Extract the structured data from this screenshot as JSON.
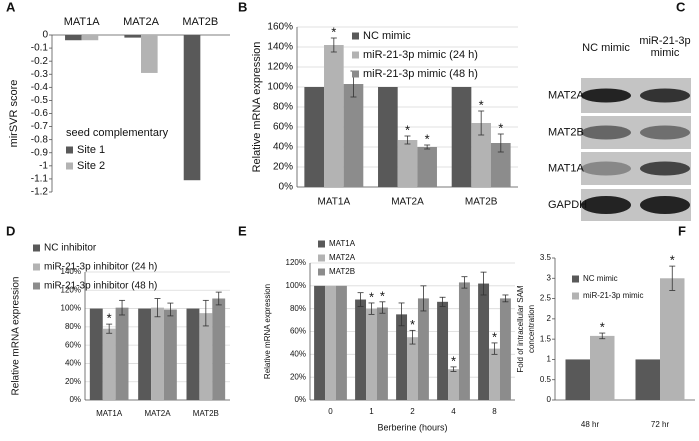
{
  "chart_data": [
    {
      "type": "bar",
      "panel": "A",
      "ylabel": "mirSVR score",
      "categories": [
        "MAT1A",
        "MAT2A",
        "MAT2B"
      ],
      "legend_title": "seed complementary",
      "series": [
        {
          "name": "Site 1",
          "color": "#595959",
          "values": [
            -0.04,
            -0.02,
            -1.11
          ]
        },
        {
          "name": "Site 2",
          "color": "#b3b3b3",
          "values": [
            -0.04,
            -0.29,
            null
          ]
        }
      ],
      "ylim": [
        -1.2,
        0
      ],
      "yticks": [
        0,
        -0.1,
        -0.2,
        -0.3,
        -0.4,
        -0.5,
        -0.6,
        -0.7,
        -0.8,
        -0.9,
        -1,
        -1.1,
        -1.2
      ],
      "grid": false
    },
    {
      "type": "bar",
      "panel": "B",
      "ylabel": "Relative mRNA expression",
      "categories": [
        "MAT1A",
        "MAT2A",
        "MAT2B"
      ],
      "series": [
        {
          "name": "NC mimic",
          "color": "#595959",
          "values": [
            100,
            100,
            100
          ],
          "errors": [
            null,
            null,
            null
          ],
          "significance": [
            null,
            null,
            null
          ]
        },
        {
          "name": "miR-21-3p mimic (24 h)",
          "color": "#b3b3b3",
          "values": [
            142,
            47,
            64
          ],
          "errors": [
            7,
            4,
            12
          ],
          "significance": [
            "*",
            "*",
            "*"
          ]
        },
        {
          "name": "miR-21-3p mimic (48 h)",
          "color": "#8c8c8c",
          "values": [
            103,
            40,
            44
          ],
          "errors": [
            13,
            2,
            9
          ],
          "significance": [
            null,
            "*",
            "*"
          ]
        }
      ],
      "ylim": [
        0,
        160
      ],
      "yticks": [
        {
          "value": 0,
          "label": "0%"
        },
        {
          "value": 20,
          "label": "20%"
        },
        {
          "value": 40,
          "label": "40%"
        },
        {
          "value": 60,
          "label": "60%"
        },
        {
          "value": 80,
          "label": "80%"
        },
        {
          "value": 100,
          "label": "100%"
        },
        {
          "value": 120,
          "label": "120%"
        },
        {
          "value": 140,
          "label": "140%"
        },
        {
          "value": 160,
          "label": "160%"
        }
      ],
      "grid": true
    },
    {
      "type": "bar",
      "panel": "D",
      "ylabel": "Relative mRNA expression",
      "categories": [
        "MAT1A",
        "MAT2A",
        "MAT2B"
      ],
      "series": [
        {
          "name": "NC inhibitor",
          "color": "#595959",
          "values": [
            100,
            100,
            100
          ],
          "errors": [
            null,
            null,
            null
          ],
          "significance": [
            null,
            null,
            null
          ]
        },
        {
          "name": "miR-21-3p inhibitor (24 h)",
          "color": "#b3b3b3",
          "values": [
            78,
            101,
            95
          ],
          "errors": [
            5,
            10,
            14
          ],
          "significance": [
            "*",
            null,
            null
          ]
        },
        {
          "name": "miR-21-3p inhibitor (48 h)",
          "color": "#8c8c8c",
          "values": [
            101,
            99,
            111
          ],
          "errors": [
            8,
            7,
            7
          ],
          "significance": [
            null,
            null,
            null
          ]
        }
      ],
      "ylim": [
        0,
        140
      ],
      "yticks": [
        {
          "value": 0,
          "label": "0%"
        },
        {
          "value": 20,
          "label": "20%"
        },
        {
          "value": 40,
          "label": "40%"
        },
        {
          "value": 60,
          "label": "60%"
        },
        {
          "value": 80,
          "label": "80%"
        },
        {
          "value": 100,
          "label": "100%"
        },
        {
          "value": 120,
          "label": "120%"
        },
        {
          "value": 140,
          "label": "140%"
        }
      ],
      "grid": true
    },
    {
      "type": "bar",
      "panel": "E",
      "ylabel": "Relative mRNA expression",
      "xlabel": "Berberine (hours)",
      "categories": [
        "0",
        "1",
        "2",
        "4",
        "8"
      ],
      "series": [
        {
          "name": "MAT1A",
          "color": "#595959",
          "values": [
            100,
            88,
            75,
            86,
            102
          ],
          "errors": [
            null,
            6,
            10,
            4,
            10
          ],
          "significance": [
            null,
            null,
            null,
            null,
            null
          ]
        },
        {
          "name": "MAT2A",
          "color": "#b3b3b3",
          "values": [
            100,
            80,
            55,
            27,
            45
          ],
          "errors": [
            null,
            5,
            6,
            2,
            5
          ],
          "significance": [
            null,
            "*",
            "*",
            "*",
            "*"
          ]
        },
        {
          "name": "MAT2B",
          "color": "#8c8c8c",
          "values": [
            100,
            81,
            89,
            103,
            89
          ],
          "errors": [
            null,
            5,
            11,
            5,
            3
          ],
          "significance": [
            null,
            "*",
            null,
            null,
            null
          ]
        }
      ],
      "ylim": [
        0,
        120
      ],
      "yticks": [
        {
          "value": 0,
          "label": "0%"
        },
        {
          "value": 20,
          "label": "20%"
        },
        {
          "value": 40,
          "label": "40%"
        },
        {
          "value": 60,
          "label": "60%"
        },
        {
          "value": 80,
          "label": "80%"
        },
        {
          "value": 100,
          "label": "100%"
        },
        {
          "value": 120,
          "label": "120%"
        }
      ],
      "grid": true
    },
    {
      "type": "bar",
      "panel": "F",
      "ylabel": [
        "Fold of intracellular SAM",
        "concentration"
      ],
      "categories": [
        "48 hr",
        "72 hr"
      ],
      "series": [
        {
          "name": "NC mimic",
          "color": "#595959",
          "values": [
            1,
            1
          ],
          "errors": [
            null,
            null
          ],
          "significance": [
            null,
            null
          ]
        },
        {
          "name": "miR-21-3p mimic",
          "color": "#b3b3b3",
          "values": [
            1.58,
            3.0
          ],
          "errors": [
            0.07,
            0.3
          ],
          "significance": [
            "*",
            "*"
          ]
        }
      ],
      "ylim": [
        0,
        3.5
      ],
      "yticks": [
        0,
        0.5,
        1,
        1.5,
        2,
        2.5,
        3,
        3.5
      ],
      "grid": false
    }
  ],
  "blot": {
    "panel": "C",
    "lanes": [
      [
        "NC mimic"
      ],
      [
        "miR-21-3p",
        "mimic"
      ]
    ],
    "rows": [
      "MAT2A",
      "MAT2B",
      "MAT1A",
      "GAPDH"
    ]
  }
}
